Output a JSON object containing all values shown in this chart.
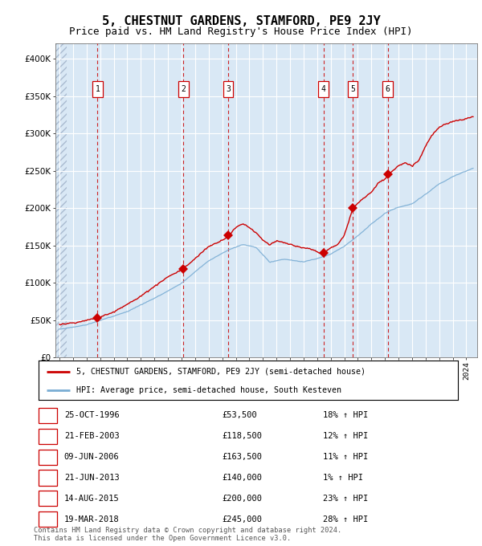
{
  "title": "5, CHESTNUT GARDENS, STAMFORD, PE9 2JY",
  "subtitle": "Price paid vs. HM Land Registry's House Price Index (HPI)",
  "title_fontsize": 11,
  "subtitle_fontsize": 9,
  "ylim": [
    0,
    420000
  ],
  "yticks": [
    0,
    50000,
    100000,
    150000,
    200000,
    250000,
    300000,
    350000,
    400000
  ],
  "ytick_labels": [
    "£0",
    "£50K",
    "£100K",
    "£150K",
    "£200K",
    "£250K",
    "£300K",
    "£350K",
    "£400K"
  ],
  "xlim_start": 1993.7,
  "xlim_end": 2024.8,
  "plot_bg_color": "#d9e8f5",
  "grid_color": "#ffffff",
  "red_line_color": "#cc0000",
  "blue_line_color": "#7aadd4",
  "sale_marker_color": "#cc0000",
  "vline_color_red": "#cc0000",
  "sale_numbers": [
    1,
    2,
    3,
    4,
    5,
    6
  ],
  "sale_dates_x": [
    1996.81,
    2003.13,
    2006.44,
    2013.47,
    2015.62,
    2018.21
  ],
  "sale_prices": [
    53500,
    118500,
    163500,
    140000,
    200000,
    245000
  ],
  "sale_dates_str": [
    "25-OCT-1996",
    "21-FEB-2003",
    "09-JUN-2006",
    "21-JUN-2013",
    "14-AUG-2015",
    "19-MAR-2018"
  ],
  "sale_hpi_pct": [
    "18%",
    "12%",
    "11%",
    "1%",
    "23%",
    "28%"
  ],
  "footnote1": "Contains HM Land Registry data © Crown copyright and database right 2024.",
  "footnote2": "This data is licensed under the Open Government Licence v3.0.",
  "legend1": "5, CHESTNUT GARDENS, STAMFORD, PE9 2JY (semi-detached house)",
  "legend2": "HPI: Average price, semi-detached house, South Kesteven"
}
